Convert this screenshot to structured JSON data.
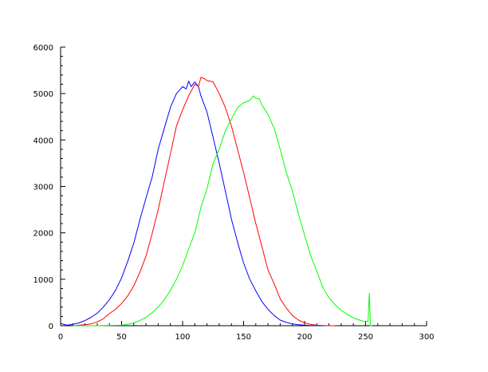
{
  "chart_data": {
    "type": "line",
    "title": "",
    "xlabel": "",
    "ylabel": "",
    "xlim": [
      0,
      300
    ],
    "ylim": [
      0,
      6000
    ],
    "grid": false,
    "x_ticks": [
      0,
      50,
      100,
      150,
      200,
      250,
      300
    ],
    "y_ticks": [
      0,
      1000,
      2000,
      3000,
      4000,
      5000,
      6000
    ],
    "series": [
      {
        "color": "#0000ff",
        "x": [
          0,
          5,
          10,
          15,
          20,
          25,
          30,
          35,
          40,
          45,
          50,
          55,
          60,
          65,
          70,
          75,
          80,
          85,
          90,
          95,
          100,
          103,
          105,
          107,
          110,
          113,
          115,
          120,
          125,
          130,
          135,
          140,
          145,
          150,
          155,
          160,
          165,
          170,
          175,
          180,
          185,
          190,
          195,
          200,
          205,
          210,
          215,
          220
        ],
        "y": [
          50,
          10,
          30,
          60,
          110,
          180,
          270,
          400,
          560,
          760,
          1030,
          1380,
          1780,
          2280,
          2750,
          3200,
          3800,
          4250,
          4700,
          5000,
          5150,
          5100,
          5270,
          5150,
          5250,
          5150,
          4950,
          4600,
          4050,
          3500,
          2900,
          2300,
          1800,
          1350,
          1000,
          750,
          520,
          350,
          220,
          120,
          70,
          40,
          20,
          10,
          5,
          0,
          0,
          0
        ]
      },
      {
        "color": "#ff0000",
        "x": [
          10,
          20,
          25,
          30,
          35,
          40,
          45,
          50,
          55,
          60,
          65,
          70,
          75,
          80,
          85,
          90,
          95,
          100,
          105,
          110,
          113,
          115,
          118,
          120,
          125,
          130,
          135,
          140,
          145,
          150,
          155,
          160,
          165,
          170,
          175,
          180,
          185,
          190,
          195,
          200,
          205,
          210,
          215,
          220,
          225
        ],
        "y": [
          0,
          20,
          40,
          80,
          150,
          260,
          350,
          480,
          640,
          860,
          1150,
          1500,
          1980,
          2500,
          3100,
          3700,
          4300,
          4650,
          4950,
          5200,
          5150,
          5350,
          5320,
          5280,
          5250,
          5000,
          4700,
          4300,
          3800,
          3300,
          2750,
          2200,
          1700,
          1200,
          900,
          580,
          380,
          220,
          120,
          60,
          30,
          10,
          5,
          0,
          0
        ]
      },
      {
        "color": "#00ff00",
        "x": [
          10,
          30,
          50,
          55,
          60,
          65,
          70,
          75,
          80,
          85,
          90,
          95,
          100,
          105,
          110,
          115,
          120,
          125,
          130,
          135,
          140,
          145,
          150,
          155,
          158,
          160,
          163,
          165,
          170,
          175,
          180,
          185,
          190,
          195,
          200,
          205,
          210,
          215,
          220,
          225,
          230,
          235,
          240,
          245,
          250,
          252,
          253,
          254,
          255
        ],
        "y": [
          0,
          0,
          10,
          30,
          60,
          110,
          180,
          280,
          400,
          560,
          760,
          1000,
          1300,
          1650,
          2000,
          2550,
          2950,
          3500,
          3800,
          4200,
          4450,
          4700,
          4800,
          4850,
          4950,
          4900,
          4880,
          4750,
          4550,
          4250,
          3800,
          3300,
          2900,
          2400,
          1950,
          1500,
          1180,
          820,
          600,
          450,
          330,
          240,
          170,
          120,
          80,
          100,
          700,
          0,
          0
        ]
      }
    ]
  }
}
